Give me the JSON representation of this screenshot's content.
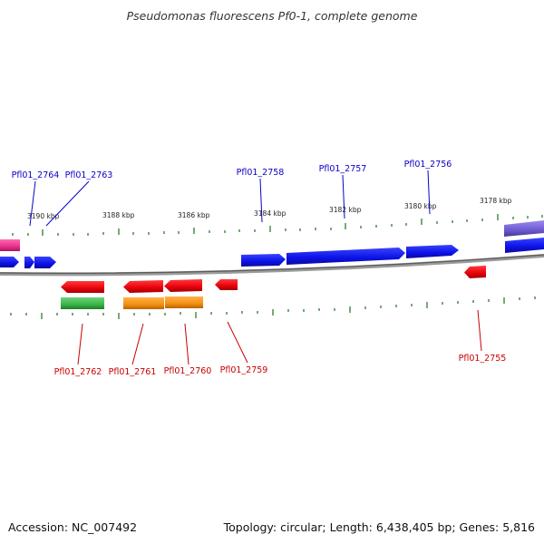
{
  "title": "Pseudomonas fluorescens Pf0-1, complete genome",
  "footer": {
    "accession": "Accession: NC_007492",
    "summary": "Topology: circular; Length: 6,438,405 bp; Genes: 5,816"
  },
  "colors": {
    "forward_gene": "#0b12e6",
    "reverse_gene": "#e8000b",
    "green_feature": "#39b54a",
    "orange_feature": "#f49012",
    "pink_feature": "#e8308c",
    "purple_feature": "#6d5bd0",
    "tick": "#2e7d32",
    "backbone": "#7a7a7a",
    "forward_label": "#0a00c8",
    "reverse_label": "#c80000"
  },
  "scale_labels": [
    "3190 kbp",
    "3188 kbp",
    "3186 kbp",
    "3184 kbp",
    "3182 kbp",
    "3180 kbp",
    "3178 kbp"
  ],
  "genes": {
    "forward": [
      "Pfl01_2764",
      "Pfl01_2763",
      "Pfl01_2758",
      "Pfl01_2757",
      "Pfl01_2756"
    ],
    "reverse": [
      "Pfl01_2762",
      "Pfl01_2761",
      "Pfl01_2760",
      "Pfl01_2759",
      "Pfl01_2755"
    ]
  }
}
